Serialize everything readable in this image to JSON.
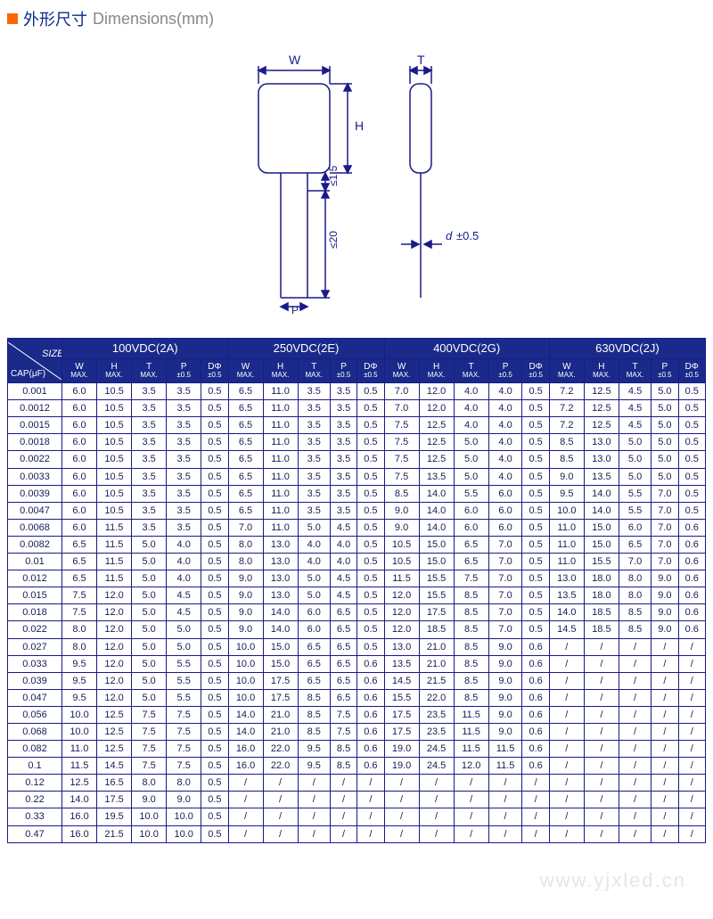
{
  "title": {
    "cn": "外形尺寸",
    "en": "Dimensions(mm)"
  },
  "diagram": {
    "labels": {
      "W": "W",
      "H": "H",
      "T": "T",
      "lead_clear": "≤1.5",
      "lead_len": "≤20",
      "d": "d",
      "tol": "±0.5",
      "P": "P"
    },
    "stroke": "#1a1a8a"
  },
  "groups": [
    {
      "label": "100VDC(2A)"
    },
    {
      "label": "250VDC(2E)"
    },
    {
      "label": "400VDC(2G)"
    },
    {
      "label": "630VDC(2J)"
    }
  ],
  "subheaders": {
    "cap": "CAP(μF)",
    "size": "SIZE",
    "cols": [
      {
        "t": "W",
        "s": "MAX."
      },
      {
        "t": "H",
        "s": "MAX."
      },
      {
        "t": "T",
        "s": "MAX."
      },
      {
        "t": "P",
        "s": "±0.5"
      },
      {
        "t": "DΦ",
        "s": "±0.5"
      }
    ]
  },
  "rows": [
    {
      "cap": "0.001",
      "v": [
        [
          "6.0",
          "10.5",
          "3.5",
          "3.5",
          "0.5"
        ],
        [
          "6.5",
          "11.0",
          "3.5",
          "3.5",
          "0.5"
        ],
        [
          "7.0",
          "12.0",
          "4.0",
          "4.0",
          "0.5"
        ],
        [
          "7.2",
          "12.5",
          "4.5",
          "5.0",
          "0.5"
        ]
      ]
    },
    {
      "cap": "0.0012",
      "v": [
        [
          "6.0",
          "10.5",
          "3.5",
          "3.5",
          "0.5"
        ],
        [
          "6.5",
          "11.0",
          "3.5",
          "3.5",
          "0.5"
        ],
        [
          "7.0",
          "12.0",
          "4.0",
          "4.0",
          "0.5"
        ],
        [
          "7.2",
          "12.5",
          "4.5",
          "5.0",
          "0.5"
        ]
      ]
    },
    {
      "cap": "0.0015",
      "v": [
        [
          "6.0",
          "10.5",
          "3.5",
          "3.5",
          "0.5"
        ],
        [
          "6.5",
          "11.0",
          "3.5",
          "3.5",
          "0.5"
        ],
        [
          "7.5",
          "12.5",
          "4.0",
          "4.0",
          "0.5"
        ],
        [
          "7.2",
          "12.5",
          "4.5",
          "5.0",
          "0.5"
        ]
      ]
    },
    {
      "cap": "0.0018",
      "v": [
        [
          "6.0",
          "10.5",
          "3.5",
          "3.5",
          "0.5"
        ],
        [
          "6.5",
          "11.0",
          "3.5",
          "3.5",
          "0.5"
        ],
        [
          "7.5",
          "12.5",
          "5.0",
          "4.0",
          "0.5"
        ],
        [
          "8.5",
          "13.0",
          "5.0",
          "5.0",
          "0.5"
        ]
      ]
    },
    {
      "cap": "0.0022",
      "v": [
        [
          "6.0",
          "10.5",
          "3.5",
          "3.5",
          "0.5"
        ],
        [
          "6.5",
          "11.0",
          "3.5",
          "3.5",
          "0.5"
        ],
        [
          "7.5",
          "12.5",
          "5.0",
          "4.0",
          "0.5"
        ],
        [
          "8.5",
          "13.0",
          "5.0",
          "5.0",
          "0.5"
        ]
      ]
    },
    {
      "cap": "0.0033",
      "v": [
        [
          "6.0",
          "10.5",
          "3.5",
          "3.5",
          "0.5"
        ],
        [
          "6.5",
          "11.0",
          "3.5",
          "3.5",
          "0.5"
        ],
        [
          "7.5",
          "13.5",
          "5.0",
          "4.0",
          "0.5"
        ],
        [
          "9.0",
          "13.5",
          "5.0",
          "5.0",
          "0.5"
        ]
      ]
    },
    {
      "cap": "0.0039",
      "v": [
        [
          "6.0",
          "10.5",
          "3.5",
          "3.5",
          "0.5"
        ],
        [
          "6.5",
          "11.0",
          "3.5",
          "3.5",
          "0.5"
        ],
        [
          "8.5",
          "14.0",
          "5.5",
          "6.0",
          "0.5"
        ],
        [
          "9.5",
          "14.0",
          "5.5",
          "7.0",
          "0.5"
        ]
      ]
    },
    {
      "cap": "0.0047",
      "v": [
        [
          "6.0",
          "10.5",
          "3.5",
          "3.5",
          "0.5"
        ],
        [
          "6.5",
          "11.0",
          "3.5",
          "3.5",
          "0.5"
        ],
        [
          "9.0",
          "14.0",
          "6.0",
          "6.0",
          "0.5"
        ],
        [
          "10.0",
          "14.0",
          "5.5",
          "7.0",
          "0.5"
        ]
      ]
    },
    {
      "cap": "0.0068",
      "v": [
        [
          "6.0",
          "11.5",
          "3.5",
          "3.5",
          "0.5"
        ],
        [
          "7.0",
          "11.0",
          "5.0",
          "4.5",
          "0.5"
        ],
        [
          "9.0",
          "14.0",
          "6.0",
          "6.0",
          "0.5"
        ],
        [
          "11.0",
          "15.0",
          "6.0",
          "7.0",
          "0.6"
        ]
      ]
    },
    {
      "cap": "0.0082",
      "v": [
        [
          "6.5",
          "11.5",
          "5.0",
          "4.0",
          "0.5"
        ],
        [
          "8.0",
          "13.0",
          "4.0",
          "4.0",
          "0.5"
        ],
        [
          "10.5",
          "15.0",
          "6.5",
          "7.0",
          "0.5"
        ],
        [
          "11.0",
          "15.0",
          "6.5",
          "7.0",
          "0.6"
        ]
      ]
    },
    {
      "cap": "0.01",
      "v": [
        [
          "6.5",
          "11.5",
          "5.0",
          "4.0",
          "0.5"
        ],
        [
          "8.0",
          "13.0",
          "4.0",
          "4.0",
          "0.5"
        ],
        [
          "10.5",
          "15.0",
          "6.5",
          "7.0",
          "0.5"
        ],
        [
          "11.0",
          "15.5",
          "7.0",
          "7.0",
          "0.6"
        ]
      ]
    },
    {
      "cap": "0.012",
      "v": [
        [
          "6.5",
          "11.5",
          "5.0",
          "4.0",
          "0.5"
        ],
        [
          "9.0",
          "13.0",
          "5.0",
          "4.5",
          "0.5"
        ],
        [
          "11.5",
          "15.5",
          "7.5",
          "7.0",
          "0.5"
        ],
        [
          "13.0",
          "18.0",
          "8.0",
          "9.0",
          "0.6"
        ]
      ]
    },
    {
      "cap": "0.015",
      "v": [
        [
          "7.5",
          "12.0",
          "5.0",
          "4.5",
          "0.5"
        ],
        [
          "9.0",
          "13.0",
          "5.0",
          "4.5",
          "0.5"
        ],
        [
          "12.0",
          "15.5",
          "8.5",
          "7.0",
          "0.5"
        ],
        [
          "13.5",
          "18.0",
          "8.0",
          "9.0",
          "0.6"
        ]
      ]
    },
    {
      "cap": "0.018",
      "v": [
        [
          "7.5",
          "12.0",
          "5.0",
          "4.5",
          "0.5"
        ],
        [
          "9.0",
          "14.0",
          "6.0",
          "6.5",
          "0.5"
        ],
        [
          "12.0",
          "17.5",
          "8.5",
          "7.0",
          "0.5"
        ],
        [
          "14.0",
          "18.5",
          "8.5",
          "9.0",
          "0.6"
        ]
      ]
    },
    {
      "cap": "0.022",
      "v": [
        [
          "8.0",
          "12.0",
          "5.0",
          "5.0",
          "0.5"
        ],
        [
          "9.0",
          "14.0",
          "6.0",
          "6.5",
          "0.5"
        ],
        [
          "12.0",
          "18.5",
          "8.5",
          "7.0",
          "0.5"
        ],
        [
          "14.5",
          "18.5",
          "8.5",
          "9.0",
          "0.6"
        ]
      ]
    },
    {
      "cap": "0.027",
      "v": [
        [
          "8.0",
          "12.0",
          "5.0",
          "5.0",
          "0.5"
        ],
        [
          "10.0",
          "15.0",
          "6.5",
          "6.5",
          "0.5"
        ],
        [
          "13.0",
          "21.0",
          "8.5",
          "9.0",
          "0.6"
        ],
        [
          "/",
          "/",
          "/",
          "/",
          "/"
        ]
      ]
    },
    {
      "cap": "0.033",
      "v": [
        [
          "9.5",
          "12.0",
          "5.0",
          "5.5",
          "0.5"
        ],
        [
          "10.0",
          "15.0",
          "6.5",
          "6.5",
          "0.6"
        ],
        [
          "13.5",
          "21.0",
          "8.5",
          "9.0",
          "0.6"
        ],
        [
          "/",
          "/",
          "/",
          "/",
          "/"
        ]
      ]
    },
    {
      "cap": "0.039",
      "v": [
        [
          "9.5",
          "12.0",
          "5.0",
          "5.5",
          "0.5"
        ],
        [
          "10.0",
          "17.5",
          "6.5",
          "6.5",
          "0.6"
        ],
        [
          "14.5",
          "21.5",
          "8.5",
          "9.0",
          "0.6"
        ],
        [
          "/",
          "/",
          "/",
          "/",
          "/"
        ]
      ]
    },
    {
      "cap": "0.047",
      "v": [
        [
          "9.5",
          "12.0",
          "5.0",
          "5.5",
          "0.5"
        ],
        [
          "10.0",
          "17.5",
          "8.5",
          "6.5",
          "0.6"
        ],
        [
          "15.5",
          "22.0",
          "8.5",
          "9.0",
          "0.6"
        ],
        [
          "/",
          "/",
          "/",
          "/",
          "/"
        ]
      ]
    },
    {
      "cap": "0.056",
      "v": [
        [
          "10.0",
          "12.5",
          "7.5",
          "7.5",
          "0.5"
        ],
        [
          "14.0",
          "21.0",
          "8.5",
          "7.5",
          "0.6"
        ],
        [
          "17.5",
          "23.5",
          "11.5",
          "9.0",
          "0.6"
        ],
        [
          "/",
          "/",
          "/",
          "/",
          "/"
        ]
      ]
    },
    {
      "cap": "0.068",
      "v": [
        [
          "10.0",
          "12.5",
          "7.5",
          "7.5",
          "0.5"
        ],
        [
          "14.0",
          "21.0",
          "8.5",
          "7.5",
          "0.6"
        ],
        [
          "17.5",
          "23.5",
          "11.5",
          "9.0",
          "0.6"
        ],
        [
          "/",
          "/",
          "/",
          "/",
          "/"
        ]
      ]
    },
    {
      "cap": "0.082",
      "v": [
        [
          "11.0",
          "12.5",
          "7.5",
          "7.5",
          "0.5"
        ],
        [
          "16.0",
          "22.0",
          "9.5",
          "8.5",
          "0.6"
        ],
        [
          "19.0",
          "24.5",
          "11.5",
          "11.5",
          "0.6"
        ],
        [
          "/",
          "/",
          "/",
          "/",
          "/"
        ]
      ]
    },
    {
      "cap": "0.1",
      "v": [
        [
          "11.5",
          "14.5",
          "7.5",
          "7.5",
          "0.5"
        ],
        [
          "16.0",
          "22.0",
          "9.5",
          "8.5",
          "0.6"
        ],
        [
          "19.0",
          "24.5",
          "12.0",
          "11.5",
          "0.6"
        ],
        [
          "/",
          "/",
          "/",
          "/",
          "/"
        ]
      ]
    },
    {
      "cap": "0.12",
      "v": [
        [
          "12.5",
          "16.5",
          "8.0",
          "8.0",
          "0.5"
        ],
        [
          "/",
          "/",
          "/",
          "/",
          "/"
        ],
        [
          "/",
          "/",
          "/",
          "/",
          "/"
        ],
        [
          "/",
          "/",
          "/",
          "/",
          "/"
        ]
      ]
    },
    {
      "cap": "0.22",
      "v": [
        [
          "14.0",
          "17.5",
          "9.0",
          "9.0",
          "0.5"
        ],
        [
          "/",
          "/",
          "/",
          "/",
          "/"
        ],
        [
          "/",
          "/",
          "/",
          "/",
          "/"
        ],
        [
          "/",
          "/",
          "/",
          "/",
          "/"
        ]
      ]
    },
    {
      "cap": "0.33",
      "v": [
        [
          "16.0",
          "19.5",
          "10.0",
          "10.0",
          "0.5"
        ],
        [
          "/",
          "/",
          "/",
          "/",
          "/"
        ],
        [
          "/",
          "/",
          "/",
          "/",
          "/"
        ],
        [
          "/",
          "/",
          "/",
          "/",
          "/"
        ]
      ]
    },
    {
      "cap": "0.47",
      "v": [
        [
          "16.0",
          "21.5",
          "10.0",
          "10.0",
          "0.5"
        ],
        [
          "/",
          "/",
          "/",
          "/",
          "/"
        ],
        [
          "/",
          "/",
          "/",
          "/",
          "/"
        ],
        [
          "/",
          "/",
          "/",
          "/",
          "/"
        ]
      ]
    }
  ],
  "watermark": "www.yjxled.cn",
  "colors": {
    "header_bg": "#1a2a8a",
    "border": "#1a1a8a",
    "text": "#1a1a5a",
    "title": "#0a2a8a",
    "accent": "#ff6600"
  }
}
